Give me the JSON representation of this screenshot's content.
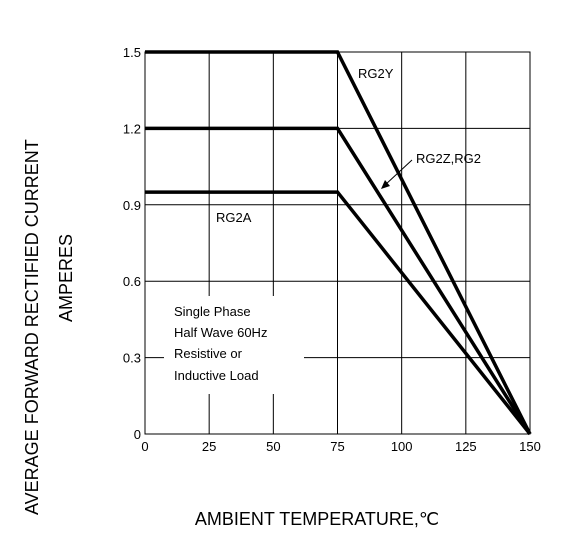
{
  "chart_data": {
    "type": "line",
    "xlabel": "AMBIENT TEMPERATURE,℃",
    "ylabel_line1": "AVERAGE FORWARD RECTIFIED CURRENT",
    "ylabel_line2": "AMPERES",
    "xlim": [
      0,
      150
    ],
    "ylim": [
      0,
      1.5
    ],
    "x_ticks": [
      0,
      25,
      50,
      75,
      100,
      125,
      150
    ],
    "y_ticks": [
      0,
      0.3,
      0.6,
      0.9,
      1.2,
      1.5
    ],
    "x_tick_labels": [
      "0",
      "25",
      "50",
      "75",
      "100",
      "125",
      "150"
    ],
    "y_tick_labels": [
      "0",
      "0.3",
      "0.6",
      "0.9",
      "1.2",
      "1.5"
    ],
    "grid": true,
    "series": [
      {
        "name": "RG2Y",
        "x": [
          0,
          75,
          150
        ],
        "y": [
          1.5,
          1.5,
          0
        ]
      },
      {
        "name": "RG2Z,RG2",
        "x": [
          0,
          75,
          150
        ],
        "y": [
          1.2,
          1.2,
          0
        ]
      },
      {
        "name": "RG2A",
        "x": [
          0,
          75,
          150
        ],
        "y": [
          0.95,
          0.95,
          0
        ]
      }
    ],
    "note_lines": [
      "Single Phase",
      "Half Wave 60Hz",
      "Resistive or",
      "Inductive Load"
    ]
  }
}
